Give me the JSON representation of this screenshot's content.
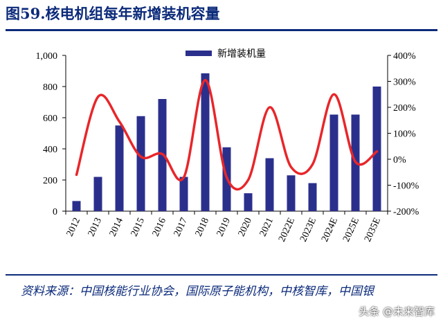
{
  "title": "图59.核电机组每年新增装机容量",
  "source": "资料来源：中国核能行业协会，国际原子能机构，中核智库，中国银",
  "watermark": "头条 @未来智库",
  "chart_data": {
    "type": "bar+line",
    "categories": [
      "2012",
      "2013",
      "2014",
      "2015",
      "2016",
      "2017",
      "2018",
      "2019",
      "2020",
      "2021",
      "2022E",
      "2023E",
      "2024E",
      "2025E",
      "2035E"
    ],
    "series": [
      {
        "name": "新增装机量",
        "type": "bar",
        "axis": "left",
        "color": "#2b2f8c",
        "values": [
          65,
          220,
          550,
          610,
          720,
          220,
          885,
          410,
          115,
          340,
          230,
          180,
          620,
          620,
          800
        ]
      },
      {
        "name": "",
        "type": "line",
        "axis": "right",
        "color": "#e8262a",
        "values": [
          -60,
          240,
          145,
          10,
          20,
          -70,
          305,
          -70,
          -80,
          200,
          -30,
          -20,
          250,
          -10,
          30
        ]
      }
    ],
    "y_left": {
      "ylim": [
        0,
        1000
      ],
      "ticks": [
        "0",
        "200",
        "400",
        "600",
        "800",
        "1,000"
      ]
    },
    "y_right": {
      "ylim": [
        -200,
        400
      ],
      "ticks": [
        "-200%",
        "-100%",
        "0%",
        "100%",
        "200%",
        "300%",
        "400%"
      ]
    },
    "grid": false,
    "legend": "top-center"
  }
}
